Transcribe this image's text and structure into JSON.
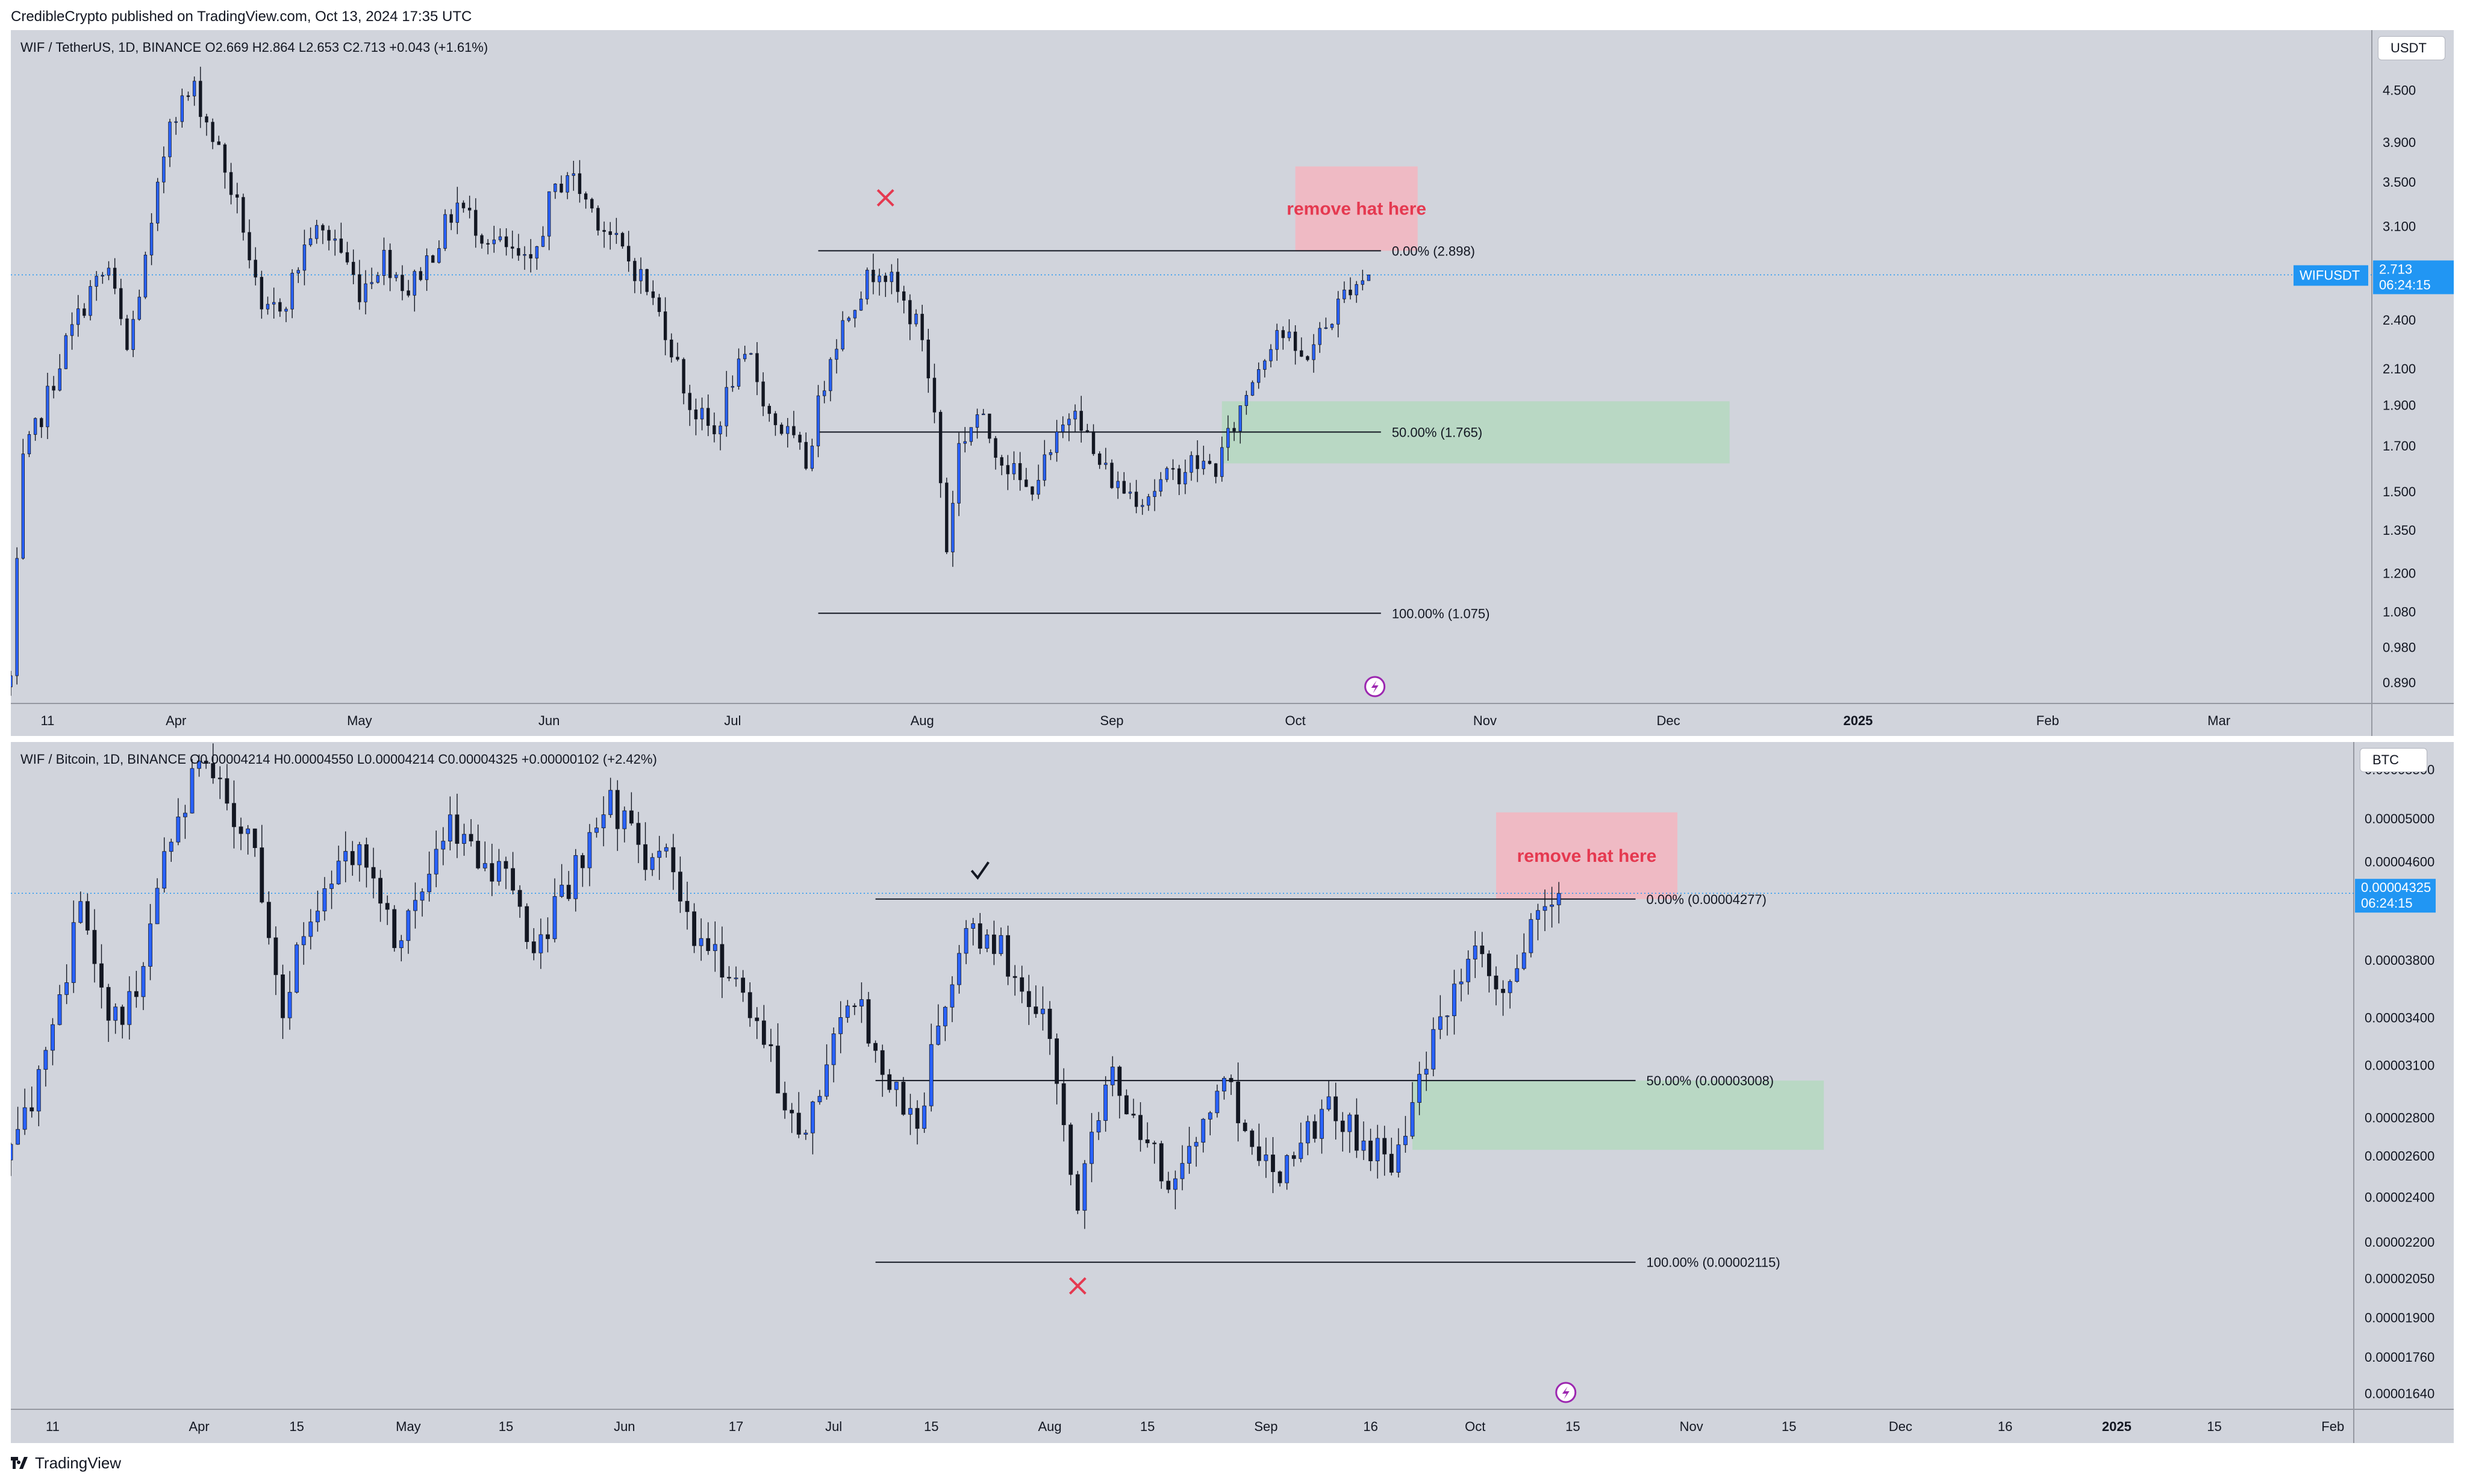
{
  "header": {
    "text": "CredibleCrypto published on TradingView.com, Oct 13, 2024 17:35 UTC"
  },
  "footer": {
    "brand": "TradingView"
  },
  "colors": {
    "up": "#2962ff",
    "down": "#131722",
    "pane_bg": "#d1d4dc",
    "price_line": "#2196f3",
    "target_box": "#f5b5c0",
    "zone_box": "#b5d8c0",
    "x_mark": "#e53950"
  },
  "chart_data": [
    {
      "type": "candlestick",
      "symbol_line": {
        "name": "WIF / TetherUS, 1D, BINANCE",
        "o_label": "O",
        "o": "2.669",
        "h_label": "H",
        "h": "2.864",
        "l_label": "L",
        "l": "2.653",
        "c_label": "C",
        "c": "2.713",
        "change": "+0.043 (+1.61%)"
      },
      "unit": "USDT",
      "scale": "log",
      "ylim": [
        0.84,
        5.3
      ],
      "y_ticks": [
        "4.500",
        "3.900",
        "3.500",
        "3.100",
        "2.400",
        "2.100",
        "1.900",
        "1.700",
        "1.500",
        "1.350",
        "1.200",
        "1.080",
        "0.980",
        "0.890"
      ],
      "x_ticks": [
        "11",
        "Apr",
        "May",
        "Jun",
        "Jul",
        "Aug",
        "Sep",
        "Oct",
        "Nov",
        "Dec",
        "2025",
        "Feb",
        "Mar"
      ],
      "x_tick_dates": [
        "2024-03-11",
        "2024-04-01",
        "2024-05-01",
        "2024-06-01",
        "2024-07-01",
        "2024-08-01",
        "2024-09-01",
        "2024-10-01",
        "2024-11-01",
        "2024-12-01",
        "2025-01-01",
        "2025-02-01",
        "2025-03-01"
      ],
      "x_range": [
        "2024-03-05",
        "2025-03-26"
      ],
      "price_label": {
        "ticker": "WIFUSDT",
        "value": "2.713",
        "countdown": "06:24:15"
      },
      "last_price": 2.713,
      "fib_levels": [
        {
          "label": "0.00% (2.898)",
          "price": 2.898
        },
        {
          "label": "50.00% (1.765)",
          "price": 1.765
        },
        {
          "label": "100.00% (1.075)",
          "price": 1.075
        }
      ],
      "fib_range": [
        "2024-07-15",
        "2024-10-15"
      ],
      "target_box": {
        "text": "remove hat here",
        "from": "2024-10-01",
        "to": "2024-10-21",
        "top": 3.65,
        "bottom": 2.898
      },
      "zone_box": {
        "from": "2024-09-19",
        "to": "2024-12-11",
        "top": 1.92,
        "bottom": 1.62
      },
      "marks": [
        {
          "type": "cross",
          "date": "2024-07-26",
          "price": 3.35
        }
      ],
      "event_icon_date": "2024-10-14",
      "anchors": [
        [
          "2024-03-05",
          0.9
        ],
        [
          "2024-03-07",
          1.62
        ],
        [
          "2024-03-10",
          1.85
        ],
        [
          "2024-03-14",
          2.25
        ],
        [
          "2024-03-18",
          2.6
        ],
        [
          "2024-03-21",
          2.75
        ],
        [
          "2024-03-24",
          2.2
        ],
        [
          "2024-03-28",
          3.05
        ],
        [
          "2024-03-31",
          4.2
        ],
        [
          "2024-04-04",
          4.5
        ],
        [
          "2024-04-08",
          3.8
        ],
        [
          "2024-04-12",
          3.1
        ],
        [
          "2024-04-15",
          2.4
        ],
        [
          "2024-04-19",
          2.55
        ],
        [
          "2024-04-23",
          3.05
        ],
        [
          "2024-04-27",
          3.0
        ],
        [
          "2024-05-01",
          2.6
        ],
        [
          "2024-05-05",
          2.85
        ],
        [
          "2024-05-09",
          2.6
        ],
        [
          "2024-05-13",
          2.9
        ],
        [
          "2024-05-17",
          3.3
        ],
        [
          "2024-05-21",
          3.05
        ],
        [
          "2024-05-25",
          2.9
        ],
        [
          "2024-05-29",
          2.75
        ],
        [
          "2024-06-01",
          3.3
        ],
        [
          "2024-06-04",
          3.6
        ],
        [
          "2024-06-08",
          3.25
        ],
        [
          "2024-06-12",
          2.95
        ],
        [
          "2024-06-16",
          2.7
        ],
        [
          "2024-06-20",
          2.35
        ],
        [
          "2024-06-24",
          1.9
        ],
        [
          "2024-06-28",
          1.75
        ],
        [
          "2024-07-01",
          2.05
        ],
        [
          "2024-07-04",
          2.15
        ],
        [
          "2024-07-07",
          1.85
        ],
        [
          "2024-07-10",
          1.75
        ],
        [
          "2024-07-13",
          1.62
        ],
        [
          "2024-07-17",
          2.2
        ],
        [
          "2024-07-21",
          2.55
        ],
        [
          "2024-07-25",
          2.8
        ],
        [
          "2024-07-29",
          2.5
        ],
        [
          "2024-08-01",
          2.3
        ],
        [
          "2024-08-03",
          1.85
        ],
        [
          "2024-08-05",
          1.28
        ],
        [
          "2024-08-07",
          1.7
        ],
        [
          "2024-08-10",
          1.85
        ],
        [
          "2024-08-14",
          1.65
        ],
        [
          "2024-08-18",
          1.5
        ],
        [
          "2024-08-22",
          1.65
        ],
        [
          "2024-08-26",
          1.93
        ],
        [
          "2024-08-29",
          1.65
        ],
        [
          "2024-09-02",
          1.52
        ],
        [
          "2024-09-06",
          1.48
        ],
        [
          "2024-09-10",
          1.55
        ],
        [
          "2024-09-14",
          1.62
        ],
        [
          "2024-09-18",
          1.6
        ],
        [
          "2024-09-21",
          1.8
        ],
        [
          "2024-09-24",
          2.05
        ],
        [
          "2024-09-28",
          2.35
        ],
        [
          "2024-10-02",
          2.15
        ],
        [
          "2024-10-06",
          2.35
        ],
        [
          "2024-10-10",
          2.65
        ],
        [
          "2024-10-13",
          2.713
        ]
      ]
    },
    {
      "type": "candlestick",
      "symbol_line": {
        "name": "WIF / Bitcoin, 1D, BINANCE",
        "o_label": "O",
        "o": "0.00004214",
        "h_label": "H",
        "h": "0.00004550",
        "l_label": "L",
        "l": "0.00004214",
        "c_label": "C",
        "c": "0.00004325",
        "change": "+0.00000102 (+2.42%)"
      },
      "unit": "BTC",
      "scale": "log",
      "ylim": [
        1.59e-05,
        5.8e-05
      ],
      "y_ticks": [
        "0.00005500",
        "0.00005000",
        "0.00004600",
        "0.00003800",
        "0.00003400",
        "0.00003100",
        "0.00002800",
        "0.00002600",
        "0.00002400",
        "0.00002200",
        "0.00002050",
        "0.00001900",
        "0.00001760",
        "0.00001640"
      ],
      "x_ticks": [
        "11",
        "Apr",
        "15",
        "May",
        "15",
        "Jun",
        "17",
        "Jul",
        "15",
        "Aug",
        "15",
        "Sep",
        "16",
        "Oct",
        "15",
        "Nov",
        "15",
        "Dec",
        "16",
        "2025",
        "15",
        "Feb"
      ],
      "x_tick_dates": [
        "2024-03-11",
        "2024-04-01",
        "2024-04-15",
        "2024-05-01",
        "2024-05-15",
        "2024-06-01",
        "2024-06-17",
        "2024-07-01",
        "2024-07-15",
        "2024-08-01",
        "2024-08-15",
        "2024-09-01",
        "2024-09-16",
        "2024-10-01",
        "2024-10-15",
        "2024-11-01",
        "2024-11-15",
        "2024-12-01",
        "2024-12-16",
        "2025-01-01",
        "2025-01-15",
        "2025-02-01"
      ],
      "x_range": [
        "2024-03-05",
        "2025-02-04"
      ],
      "price_label": {
        "value": "0.00004325",
        "countdown": "06:24:15"
      },
      "last_price": 4.325e-05,
      "fib_levels": [
        {
          "label": "0.00% (0.00004277)",
          "price": 4.277e-05
        },
        {
          "label": "50.00% (0.00003008)",
          "price": 3.008e-05
        },
        {
          "label": "100.00% (0.00002115)",
          "price": 2.115e-05
        }
      ],
      "fib_range": [
        "2024-07-07",
        "2024-10-24"
      ],
      "target_box": {
        "text": "remove hat here",
        "from": "2024-10-04",
        "to": "2024-10-30",
        "top": 5.06e-05,
        "bottom": 4.277e-05
      },
      "zone_box": {
        "from": "2024-09-22",
        "to": "2024-11-20",
        "top": 3.008e-05,
        "bottom": 2.63e-05
      },
      "marks": [
        {
          "type": "check",
          "date": "2024-07-22",
          "price": 4.52e-05
        },
        {
          "type": "cross",
          "date": "2024-08-05",
          "price": 2.02e-05
        }
      ],
      "event_icon_date": "2024-10-14",
      "anchors": [
        [
          "2024-03-05",
          2.7e-05
        ],
        [
          "2024-03-08",
          2.85e-05
        ],
        [
          "2024-03-12",
          3.5e-05
        ],
        [
          "2024-03-15",
          4.2e-05
        ],
        [
          "2024-03-19",
          3.3e-05
        ],
        [
          "2024-03-23",
          3.6e-05
        ],
        [
          "2024-03-27",
          4.8e-05
        ],
        [
          "2024-04-01",
          5.5e-05
        ],
        [
          "2024-04-05",
          5.2e-05
        ],
        [
          "2024-04-09",
          4.7e-05
        ],
        [
          "2024-04-13",
          3.5e-05
        ],
        [
          "2024-04-17",
          4.2e-05
        ],
        [
          "2024-04-21",
          4.5e-05
        ],
        [
          "2024-04-25",
          4.7e-05
        ],
        [
          "2024-04-29",
          4e-05
        ],
        [
          "2024-05-03",
          4.3e-05
        ],
        [
          "2024-05-07",
          4.9e-05
        ],
        [
          "2024-05-11",
          4.7e-05
        ],
        [
          "2024-05-15",
          4.4e-05
        ],
        [
          "2024-05-19",
          3.9e-05
        ],
        [
          "2024-05-23",
          4.3e-05
        ],
        [
          "2024-05-27",
          4.7e-05
        ],
        [
          "2024-05-30",
          5.2e-05
        ],
        [
          "2024-06-03",
          4.7e-05
        ],
        [
          "2024-06-07",
          4.6e-05
        ],
        [
          "2024-06-11",
          3.9e-05
        ],
        [
          "2024-06-15",
          3.8e-05
        ],
        [
          "2024-06-19",
          3.5e-05
        ],
        [
          "2024-06-23",
          3e-05
        ],
        [
          "2024-06-27",
          2.7e-05
        ],
        [
          "2024-07-01",
          3.3e-05
        ],
        [
          "2024-07-05",
          3.45e-05
        ],
        [
          "2024-07-09",
          3e-05
        ],
        [
          "2024-07-13",
          2.75e-05
        ],
        [
          "2024-07-16",
          3.35e-05
        ],
        [
          "2024-07-20",
          3.95e-05
        ],
        [
          "2024-07-24",
          3.95e-05
        ],
        [
          "2024-07-28",
          3.6e-05
        ],
        [
          "2024-08-01",
          3.3e-05
        ],
        [
          "2024-08-03",
          2.7e-05
        ],
        [
          "2024-08-05",
          2.35e-05
        ],
        [
          "2024-08-07",
          2.8e-05
        ],
        [
          "2024-08-10",
          3.05e-05
        ],
        [
          "2024-08-14",
          2.65e-05
        ],
        [
          "2024-08-18",
          2.5e-05
        ],
        [
          "2024-08-22",
          2.65e-05
        ],
        [
          "2024-08-26",
          3.05e-05
        ],
        [
          "2024-08-30",
          2.65e-05
        ],
        [
          "2024-09-03",
          2.55e-05
        ],
        [
          "2024-09-07",
          2.75e-05
        ],
        [
          "2024-09-11",
          2.85e-05
        ],
        [
          "2024-09-15",
          2.65e-05
        ],
        [
          "2024-09-19",
          2.6e-05
        ],
        [
          "2024-09-23",
          3e-05
        ],
        [
          "2024-09-27",
          3.45e-05
        ],
        [
          "2024-10-01",
          3.8e-05
        ],
        [
          "2024-10-05",
          3.5e-05
        ],
        [
          "2024-10-09",
          4e-05
        ],
        [
          "2024-10-13",
          4.325e-05
        ]
      ]
    }
  ]
}
